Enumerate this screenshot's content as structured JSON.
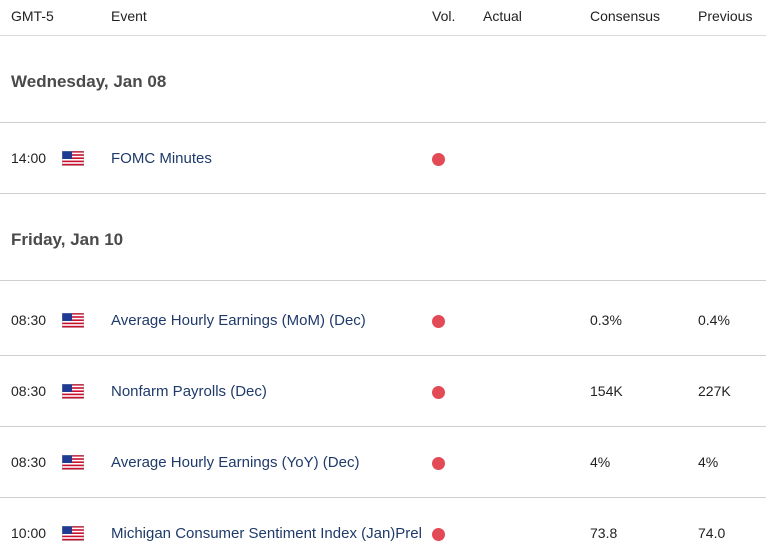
{
  "header": {
    "timezone": "GMT-5",
    "event": "Event",
    "vol": "Vol.",
    "actual": "Actual",
    "consensus": "Consensus",
    "previous": "Previous"
  },
  "days": [
    {
      "label": "Wednesday, Jan 08"
    },
    {
      "label": "Friday, Jan 10"
    }
  ],
  "events": [
    {
      "time": "14:00",
      "country_flag": "us-flag-icon",
      "name": "FOMC Minutes",
      "volatility": "high",
      "actual": "",
      "consensus": "",
      "previous": ""
    },
    {
      "time": "08:30",
      "country_flag": "us-flag-icon",
      "name": "Average Hourly Earnings (MoM) (Dec)",
      "volatility": "high",
      "actual": "",
      "consensus": "0.3%",
      "previous": "0.4%"
    },
    {
      "time": "08:30",
      "country_flag": "us-flag-icon",
      "name": "Nonfarm Payrolls (Dec)",
      "volatility": "high",
      "actual": "",
      "consensus": "154K",
      "previous": "227K"
    },
    {
      "time": "08:30",
      "country_flag": "us-flag-icon",
      "name": "Average Hourly Earnings (YoY) (Dec)",
      "volatility": "high",
      "actual": "",
      "consensus": "4%",
      "previous": "4%"
    },
    {
      "time": "10:00",
      "country_flag": "us-flag-icon",
      "name": "Michigan Consumer Sentiment Index (Jan)Prel",
      "volatility": "high",
      "actual": "",
      "consensus": "73.8",
      "previous": "74.0"
    }
  ],
  "colors": {
    "volatility_high": "#e24a55",
    "event_text": "#1f3a6b",
    "divider": "#cfcfcf"
  }
}
